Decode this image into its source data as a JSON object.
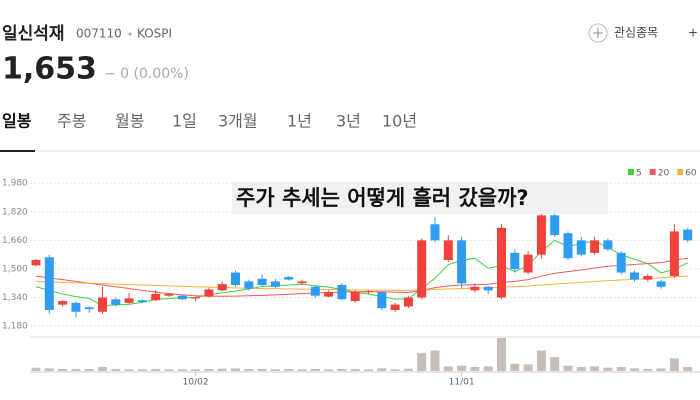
{
  "header": {
    "name": "일신석재",
    "code": "007110",
    "market": "KOSPI",
    "watch": "관심종목",
    "price": "1,653",
    "change": "− 0 (0.00%)"
  },
  "tabs": [
    "일봉",
    "주봉",
    "월봉",
    "1일",
    "3개월",
    "1년",
    "3년",
    "10년"
  ],
  "chart_data": {
    "type": "candlestick",
    "title": "주가 추세는 어떻게 흘러 갔을까?",
    "categories": [
      null,
      null,
      null,
      null,
      null,
      null,
      null,
      null,
      null,
      null,
      null,
      null,
      "10/02",
      null,
      null,
      null,
      null,
      null,
      null,
      null,
      null,
      null,
      null,
      null,
      null,
      null,
      null,
      null,
      null,
      null,
      null,
      null,
      "11/01",
      null,
      null,
      null,
      null,
      null,
      null,
      null,
      null,
      null,
      null,
      null,
      null,
      null,
      null,
      null,
      null,
      null
    ],
    "open": [
      1520,
      1565,
      1300,
      1310,
      1285,
      1260,
      1330,
      1310,
      1325,
      1325,
      1350,
      1350,
      1335,
      1345,
      1380,
      1480,
      1430,
      1445,
      1430,
      1455,
      1420,
      1400,
      1345,
      1410,
      1320,
      1370,
      1370,
      1270,
      1290,
      1340,
      1750,
      1550,
      1660,
      1380,
      1400,
      1340,
      1590,
      1480,
      1580,
      1800,
      1700,
      1660,
      1590,
      1660,
      1590,
      1480,
      1440,
      1430,
      1460,
      1720
    ],
    "high": [
      1555,
      1580,
      1325,
      1320,
      1290,
      1400,
      1340,
      1365,
      1330,
      1380,
      1365,
      1355,
      1345,
      1395,
      1430,
      1490,
      1440,
      1470,
      1445,
      1460,
      1440,
      1410,
      1380,
      1420,
      1380,
      1380,
      1375,
      1310,
      1350,
      1670,
      1790,
      1690,
      1680,
      1420,
      1405,
      1750,
      1610,
      1600,
      1820,
      1830,
      1710,
      1680,
      1680,
      1670,
      1600,
      1490,
      1470,
      1440,
      1750,
      1730
    ],
    "low": [
      1515,
      1250,
      1290,
      1230,
      1255,
      1250,
      1290,
      1300,
      1310,
      1320,
      1345,
      1325,
      1320,
      1340,
      1375,
      1400,
      1380,
      1400,
      1395,
      1435,
      1410,
      1340,
      1340,
      1325,
      1310,
      1360,
      1270,
      1260,
      1280,
      1330,
      1650,
      1540,
      1390,
      1370,
      1360,
      1330,
      1480,
      1470,
      1560,
      1680,
      1550,
      1570,
      1580,
      1600,
      1470,
      1430,
      1430,
      1390,
      1450,
      1650
    ],
    "close": [
      1550,
      1270,
      1320,
      1260,
      1275,
      1340,
      1300,
      1335,
      1315,
      1360,
      1360,
      1330,
      1340,
      1385,
      1415,
      1410,
      1390,
      1410,
      1400,
      1440,
      1430,
      1350,
      1370,
      1330,
      1370,
      1375,
      1280,
      1300,
      1340,
      1660,
      1660,
      1660,
      1420,
      1400,
      1380,
      1730,
      1500,
      1580,
      1800,
      1690,
      1560,
      1580,
      1660,
      1610,
      1480,
      1440,
      1460,
      1400,
      1710,
      1660
    ],
    "volume": [
      10,
      8,
      6,
      6,
      6,
      12,
      6,
      5,
      5,
      6,
      5,
      5,
      5,
      6,
      7,
      8,
      6,
      6,
      5,
      6,
      5,
      6,
      5,
      6,
      6,
      5,
      8,
      5,
      7,
      55,
      62,
      14,
      16,
      12,
      14,
      100,
      22,
      20,
      62,
      42,
      16,
      12,
      14,
      10,
      12,
      8,
      6,
      8,
      38,
      12
    ],
    "volume_lim": [
      0,
      100
    ],
    "up_color": "#f0413c",
    "down_color": "#2e9cf0",
    "series": [
      {
        "name": "5",
        "color": "#3ad33a",
        "values": [
          1400,
          1380,
          1360,
          1345,
          1335,
          1293,
          1299,
          1302,
          1313,
          1330,
          1334,
          1340,
          1341,
          1355,
          1366,
          1376,
          1388,
          1402,
          1405,
          1410,
          1414,
          1406,
          1398,
          1384,
          1370,
          1359,
          1345,
          1331,
          1333,
          1391,
          1448,
          1524,
          1548,
          1560,
          1504,
          1518,
          1486,
          1518,
          1598,
          1660,
          1626,
          1642,
          1658,
          1620,
          1578,
          1554,
          1530,
          1478,
          1498,
          1534
        ]
      },
      {
        "name": "20",
        "color": "#f05a5a",
        "values": [
          1460,
          1450,
          1440,
          1430,
          1420,
          1410,
          1400,
          1390,
          1380,
          1370,
          1362,
          1355,
          1350,
          1348,
          1347,
          1348,
          1350,
          1352,
          1355,
          1358,
          1362,
          1365,
          1368,
          1370,
          1372,
          1373,
          1372,
          1370,
          1368,
          1380,
          1395,
          1405,
          1410,
          1412,
          1414,
          1425,
          1430,
          1440,
          1460,
          1475,
          1485,
          1495,
          1505,
          1515,
          1520,
          1525,
          1530,
          1535,
          1550,
          1560
        ]
      },
      {
        "name": "60",
        "color": "#f5b041",
        "values": [
          1430,
          1428,
          1425,
          1422,
          1420,
          1418,
          1415,
          1412,
          1410,
          1407,
          1405,
          1402,
          1400,
          1398,
          1396,
          1394,
          1392,
          1390,
          1389,
          1388,
          1387,
          1386,
          1385,
          1384,
          1383,
          1382,
          1381,
          1380,
          1380,
          1382,
          1385,
          1388,
          1390,
          1392,
          1394,
          1398,
          1400,
          1404,
          1410,
          1415,
          1420,
          1425,
          1430,
          1434,
          1438,
          1442,
          1446,
          1450,
          1456,
          1460
        ]
      }
    ],
    "ylim": [
      1130,
      2110
    ],
    "yticks": [
      {
        "value": 1980,
        "label": "1,980"
      },
      {
        "value": 1820,
        "label": "1,820"
      },
      {
        "value": 1660,
        "label": "1,660"
      },
      {
        "value": 1500,
        "label": "1,500"
      },
      {
        "value": 1340,
        "label": "1,340"
      },
      {
        "value": 1180,
        "label": "1,180"
      }
    ],
    "grid": true,
    "legend": "top-right"
  }
}
